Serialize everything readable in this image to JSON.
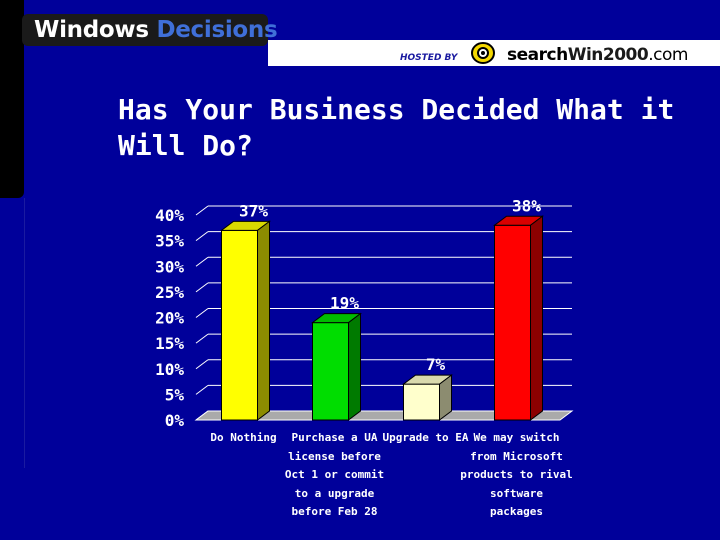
{
  "header": {
    "brand_part1": "Windows",
    "brand_part2": "Decisions",
    "hosted_by": "HOSTED BY",
    "logo_search": "search",
    "logo_win": "Win2000",
    "logo_com": ".com"
  },
  "colors": {
    "background": "#00009a",
    "bar_colors": [
      "#ffff00",
      "#00dd00",
      "#ffffcc",
      "#ff0000"
    ]
  },
  "chart_data": {
    "type": "bar",
    "title": "Has Your Business Decided What it Will Do?",
    "categories": [
      [
        "Do Nothing"
      ],
      [
        "Purchase a UA",
        "license before",
        "Oct 1 or commit",
        "to a upgrade",
        "before Feb 28"
      ],
      [
        "Upgrade to EA"
      ],
      [
        "We may switch",
        "from Microsoft",
        "products to rival",
        "software",
        "packages"
      ]
    ],
    "values": [
      37,
      19,
      7,
      38
    ],
    "data_labels": [
      "37%",
      "19%",
      "7%",
      "38%"
    ],
    "ylim": [
      0,
      40
    ],
    "yticks": [
      "0%",
      "5%",
      "10%",
      "15%",
      "20%",
      "25%",
      "30%",
      "35%",
      "40%"
    ],
    "grid": true,
    "style": "3d-bar"
  }
}
